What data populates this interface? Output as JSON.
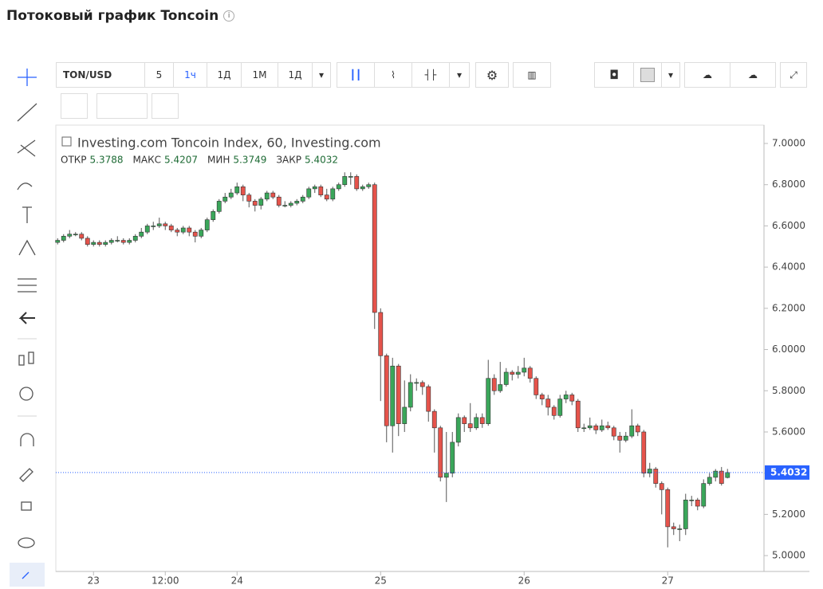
{
  "header": {
    "title": "Потоковый график Toncoin"
  },
  "toolbar": {
    "symbol": "TON/USD",
    "intervals": [
      "5",
      "1ч",
      "1Д",
      "1М",
      "1Д"
    ]
  },
  "chart_data": {
    "type": "candlestick",
    "title": "Investing.com Toncoin Index, 60, Investing.com",
    "legend_labels": [
      "ОТКР",
      "МАКС",
      "МИН",
      "ЗАКР"
    ],
    "up_color": "#3aa65a",
    "down_color": "#e5534b",
    "last_price_line": true,
    "grid": false,
    "open": [
      6.52,
      6.53,
      6.55,
      6.56,
      6.56,
      6.54,
      6.51,
      6.52,
      6.51,
      6.52,
      6.53,
      6.53,
      6.52,
      6.53,
      6.55,
      6.57,
      6.6,
      6.6,
      6.61,
      6.6,
      6.58,
      6.57,
      6.59,
      6.57,
      6.55,
      6.58,
      6.63,
      6.67,
      6.72,
      6.74,
      6.76,
      6.79,
      6.75,
      6.72,
      6.7,
      6.73,
      6.76,
      6.74,
      6.7,
      6.7,
      6.71,
      6.72,
      6.74,
      6.78,
      6.79,
      6.75,
      6.73,
      6.78,
      6.8,
      6.84,
      6.84,
      6.78,
      6.79,
      6.8,
      6.18,
      5.97,
      5.63,
      5.92,
      5.64,
      5.72,
      5.84,
      5.84,
      5.82,
      5.7,
      5.62,
      5.38,
      5.4,
      5.55,
      5.67,
      5.64,
      5.62,
      5.67,
      5.64,
      5.86,
      5.8,
      5.83,
      5.89,
      5.88,
      5.89,
      5.91,
      5.86,
      5.78,
      5.76,
      5.72,
      5.68,
      5.76,
      5.78,
      5.75,
      5.62,
      5.62,
      5.63,
      5.61,
      5.63,
      5.62,
      5.58,
      5.56,
      5.58,
      5.63,
      5.6,
      5.4,
      5.42,
      5.35,
      5.32,
      5.14,
      5.13,
      5.13,
      5.27,
      5.27,
      5.24,
      5.35,
      5.38,
      5.41,
      5.3788
    ],
    "high": [
      6.54,
      6.56,
      6.58,
      6.57,
      6.57,
      6.55,
      6.53,
      6.53,
      6.53,
      6.54,
      6.55,
      6.54,
      6.54,
      6.56,
      6.59,
      6.61,
      6.62,
      6.64,
      6.62,
      6.61,
      6.59,
      6.6,
      6.6,
      6.58,
      6.59,
      6.64,
      6.68,
      6.73,
      6.76,
      6.78,
      6.81,
      6.8,
      6.76,
      6.73,
      6.74,
      6.77,
      6.77,
      6.75,
      6.72,
      6.72,
      6.73,
      6.75,
      6.79,
      6.8,
      6.8,
      6.78,
      6.79,
      6.81,
      6.86,
      6.86,
      6.85,
      6.8,
      6.81,
      6.81,
      6.2,
      5.98,
      5.96,
      5.93,
      5.85,
      5.88,
      5.86,
      5.85,
      5.83,
      5.71,
      5.63,
      5.6,
      5.6,
      5.69,
      5.68,
      5.74,
      5.69,
      5.69,
      5.95,
      5.88,
      5.94,
      5.91,
      5.9,
      5.92,
      5.96,
      5.92,
      5.87,
      5.79,
      5.78,
      5.73,
      5.78,
      5.8,
      5.79,
      5.76,
      5.64,
      5.67,
      5.64,
      5.66,
      5.65,
      5.63,
      5.6,
      5.6,
      5.71,
      5.64,
      5.61,
      5.45,
      5.43,
      5.36,
      5.33,
      5.16,
      5.15,
      5.3,
      5.29,
      5.28,
      5.37,
      5.4,
      5.42,
      5.43,
      5.4207
    ],
    "low": [
      6.51,
      6.52,
      6.54,
      6.55,
      6.53,
      6.5,
      6.5,
      6.5,
      6.5,
      6.51,
      6.52,
      6.51,
      6.51,
      6.52,
      6.54,
      6.56,
      6.58,
      6.59,
      6.58,
      6.57,
      6.55,
      6.56,
      6.55,
      6.52,
      6.54,
      6.57,
      6.62,
      6.66,
      6.71,
      6.73,
      6.75,
      6.72,
      6.69,
      6.67,
      6.68,
      6.72,
      6.73,
      6.69,
      6.69,
      6.69,
      6.7,
      6.71,
      6.73,
      6.76,
      6.74,
      6.72,
      6.72,
      6.77,
      6.79,
      6.8,
      6.77,
      6.77,
      6.78,
      6.1,
      5.75,
      5.55,
      5.5,
      5.58,
      5.6,
      5.7,
      5.8,
      5.78,
      5.65,
      5.5,
      5.36,
      5.26,
      5.38,
      5.53,
      5.6,
      5.6,
      5.61,
      5.62,
      5.63,
      5.78,
      5.79,
      5.82,
      5.85,
      5.86,
      5.87,
      5.84,
      5.76,
      5.73,
      5.68,
      5.66,
      5.67,
      5.74,
      5.73,
      5.6,
      5.6,
      5.61,
      5.59,
      5.6,
      5.61,
      5.56,
      5.5,
      5.55,
      5.57,
      5.58,
      5.38,
      5.38,
      5.33,
      5.2,
      5.04,
      5.1,
      5.07,
      5.1,
      5.24,
      5.22,
      5.23,
      5.34,
      5.36,
      5.34,
      5.3749
    ],
    "close": [
      6.53,
      6.55,
      6.56,
      6.56,
      6.54,
      6.51,
      6.52,
      6.51,
      6.52,
      6.53,
      6.53,
      6.52,
      6.53,
      6.55,
      6.57,
      6.6,
      6.6,
      6.61,
      6.6,
      6.58,
      6.57,
      6.59,
      6.57,
      6.55,
      6.58,
      6.63,
      6.67,
      6.72,
      6.74,
      6.76,
      6.79,
      6.75,
      6.72,
      6.7,
      6.73,
      6.76,
      6.74,
      6.7,
      6.7,
      6.71,
      6.72,
      6.74,
      6.78,
      6.79,
      6.75,
      6.73,
      6.78,
      6.8,
      6.84,
      6.84,
      6.78,
      6.79,
      6.8,
      6.18,
      5.97,
      5.63,
      5.92,
      5.64,
      5.72,
      5.84,
      5.84,
      5.82,
      5.7,
      5.62,
      5.38,
      5.4,
      5.55,
      5.67,
      5.64,
      5.62,
      5.67,
      5.64,
      5.86,
      5.8,
      5.83,
      5.89,
      5.88,
      5.89,
      5.91,
      5.86,
      5.78,
      5.76,
      5.72,
      5.68,
      5.76,
      5.78,
      5.75,
      5.62,
      5.62,
      5.63,
      5.61,
      5.63,
      5.62,
      5.58,
      5.56,
      5.58,
      5.63,
      5.6,
      5.4,
      5.42,
      5.35,
      5.32,
      5.14,
      5.13,
      5.13,
      5.27,
      5.27,
      5.24,
      5.35,
      5.38,
      5.41,
      5.35,
      5.4032
    ],
    "ylim": [
      4.923,
      7.089
    ],
    "yticks": [
      {
        "value": 5,
        "label": "5.0000"
      },
      {
        "value": 5.2,
        "label": "5.2000"
      },
      {
        "value": 5.4,
        "label": "5.4000"
      },
      {
        "value": 5.6,
        "label": "5.6000"
      },
      {
        "value": 5.8,
        "label": "5.8000"
      },
      {
        "value": 6,
        "label": "6.0000"
      },
      {
        "value": 6.2,
        "label": "6.2000"
      },
      {
        "value": 6.4,
        "label": "6.4000"
      },
      {
        "value": 6.6,
        "label": "6.6000"
      },
      {
        "value": 6.8,
        "label": "6.8000"
      },
      {
        "value": 7,
        "label": "7.0000"
      }
    ],
    "xlim": [
      -0.3,
      118.1
    ],
    "xticks": [
      {
        "value": 6,
        "label": "23"
      },
      {
        "value": 18,
        "label": "12:00"
      },
      {
        "value": 30,
        "label": "24"
      },
      {
        "value": 54,
        "label": "25"
      },
      {
        "value": 78,
        "label": "26"
      },
      {
        "value": 102,
        "label": "27"
      }
    ]
  }
}
